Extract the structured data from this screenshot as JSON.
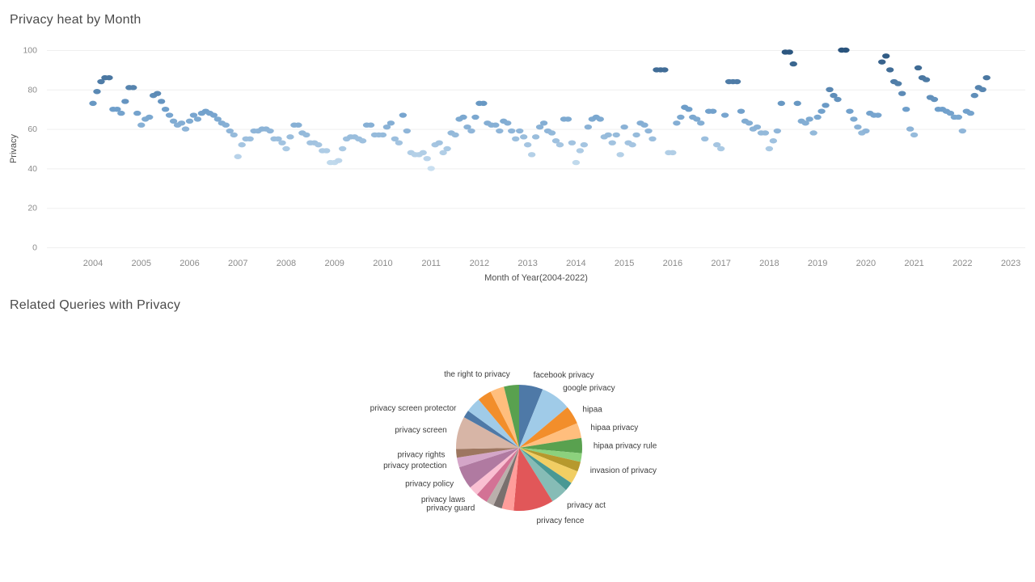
{
  "headings_note": "both section headings are the chart titles bound from chart_data",
  "colors": {
    "background": "#ffffff",
    "title_text": "#4b4b4b",
    "axis_tick_text": "#8b8b8b",
    "axis_title_text": "#4e4e4e",
    "gridline": "#efefef",
    "mark_gradient_low": "#c9dff0",
    "mark_gradient_mid": "#6f9fcb",
    "mark_gradient_high": "#2a547d"
  },
  "chart_data": [
    {
      "type": "scatter",
      "title": "Privacy heat by Month",
      "xlabel": "Month of Year(2004-2022)",
      "ylabel": "Privacy",
      "ylim": [
        0,
        100
      ],
      "yticks": [
        0,
        20,
        40,
        60,
        80,
        100
      ],
      "xticks": [
        "2004",
        "2005",
        "2006",
        "2007",
        "2008",
        "2009",
        "2010",
        "2011",
        "2012",
        "2013",
        "2014",
        "2015",
        "2016",
        "2017",
        "2018",
        "2019",
        "2020",
        "2021",
        "2022",
        "2023"
      ],
      "grid": "horizontal",
      "color_encoding": "value (light blue = low, dark blue = high)",
      "series": {
        "2004": [
          73,
          79,
          84,
          86,
          86,
          70,
          70,
          68,
          74,
          81,
          81,
          68
        ],
        "2005": [
          62,
          65,
          66,
          77,
          78,
          74,
          70,
          67,
          64,
          62,
          63,
          60
        ],
        "2006": [
          64,
          67,
          65,
          68,
          69,
          68,
          67,
          65,
          63,
          62,
          59,
          57
        ],
        "2007": [
          46,
          52,
          55,
          55,
          59,
          59,
          60,
          60,
          59,
          55,
          55,
          53
        ],
        "2008": [
          50,
          56,
          62,
          62,
          58,
          57,
          53,
          53,
          52,
          49,
          49,
          43
        ],
        "2009": [
          43,
          44,
          50,
          55,
          56,
          56,
          55,
          54,
          62,
          62,
          57,
          57
        ],
        "2010": [
          57,
          61,
          63,
          55,
          53,
          67,
          59,
          48,
          47,
          47,
          48,
          45
        ],
        "2011": [
          40,
          52,
          53,
          48,
          50,
          58,
          57,
          65,
          66,
          61,
          59,
          66
        ],
        "2012": [
          73,
          73,
          63,
          62,
          62,
          59,
          64,
          63,
          59,
          55,
          59,
          56
        ],
        "2013": [
          52,
          47,
          56,
          61,
          63,
          59,
          58,
          54,
          52,
          65,
          65,
          53
        ],
        "2014": [
          43,
          49,
          52,
          61,
          65,
          66,
          65,
          56,
          57,
          53,
          57,
          47
        ],
        "2015": [
          61,
          53,
          52,
          57,
          63,
          62,
          59,
          55,
          90,
          90,
          90,
          48
        ],
        "2016": [
          48,
          63,
          66,
          71,
          70,
          66,
          65,
          63,
          55,
          69,
          69,
          52
        ],
        "2017": [
          50,
          67,
          84,
          84,
          84,
          69,
          64,
          63,
          60,
          61,
          58,
          58
        ],
        "2018": [
          50,
          54,
          59,
          73,
          99,
          99,
          93,
          73,
          64,
          63,
          65,
          58
        ],
        "2019": [
          66,
          69,
          72,
          80,
          77,
          75,
          100,
          100,
          69,
          65,
          61,
          58
        ],
        "2020": [
          59,
          68,
          67,
          67,
          94,
          97,
          90,
          84,
          83,
          78,
          70,
          60
        ],
        "2021": [
          57,
          91,
          86,
          85,
          76,
          75,
          70,
          70,
          69,
          68,
          66,
          66
        ],
        "2022": [
          59,
          69,
          68,
          77,
          81,
          80,
          86
        ]
      }
    },
    {
      "type": "pie",
      "title": "Related Queries with Privacy",
      "legend": "none",
      "unlabeled_slices_note": "slices with empty label show no text in the screenshot",
      "slices": [
        {
          "label": "facebook privacy",
          "deg": 22,
          "color": "#4E79A7"
        },
        {
          "label": "google privacy",
          "deg": 28,
          "color": "#A0CBE8"
        },
        {
          "label": "hipaa",
          "deg": 17,
          "color": "#F28E2B"
        },
        {
          "label": "hipaa privacy",
          "deg": 14,
          "color": "#FFBE7D"
        },
        {
          "label": "hipaa privacy rule",
          "deg": 14,
          "color": "#59A14F"
        },
        {
          "label": "",
          "deg": 8,
          "color": "#8CD17D"
        },
        {
          "label": "invasion of privacy",
          "deg": 9,
          "color": "#B6992D"
        },
        {
          "label": "",
          "deg": 12,
          "color": "#F1CE63"
        },
        {
          "label": "",
          "deg": 8,
          "color": "#499894"
        },
        {
          "label": "privacy act",
          "deg": 16,
          "color": "#86BCB6"
        },
        {
          "label": "privacy fence",
          "deg": 37,
          "color": "#E15759"
        },
        {
          "label": "",
          "deg": 11,
          "color": "#FF9D9A"
        },
        {
          "label": "",
          "deg": 8,
          "color": "#79706E"
        },
        {
          "label": "",
          "deg": 7,
          "color": "#BAB0AC"
        },
        {
          "label": "privacy guard",
          "deg": 11,
          "color": "#D37295"
        },
        {
          "label": "privacy laws",
          "deg": 9,
          "color": "#FABFD2"
        },
        {
          "label": "privacy policy",
          "deg": 21,
          "color": "#B07AA1"
        },
        {
          "label": "privacy protection",
          "deg": 9,
          "color": "#D4A6C8"
        },
        {
          "label": "privacy rights",
          "deg": 8,
          "color": "#9D7660"
        },
        {
          "label": "privacy screen",
          "deg": 30,
          "color": "#D7B5A6"
        },
        {
          "label": "privacy screen protector",
          "deg": 7,
          "color": "#4E79A7"
        },
        {
          "label": "",
          "deg": 14,
          "color": "#A0CBE8"
        },
        {
          "label": "",
          "deg": 13,
          "color": "#F28E2B"
        },
        {
          "label": "",
          "deg": 13,
          "color": "#FFBE7D"
        },
        {
          "label": "the right to privacy",
          "deg": 14,
          "color": "#59A14F"
        }
      ]
    }
  ]
}
